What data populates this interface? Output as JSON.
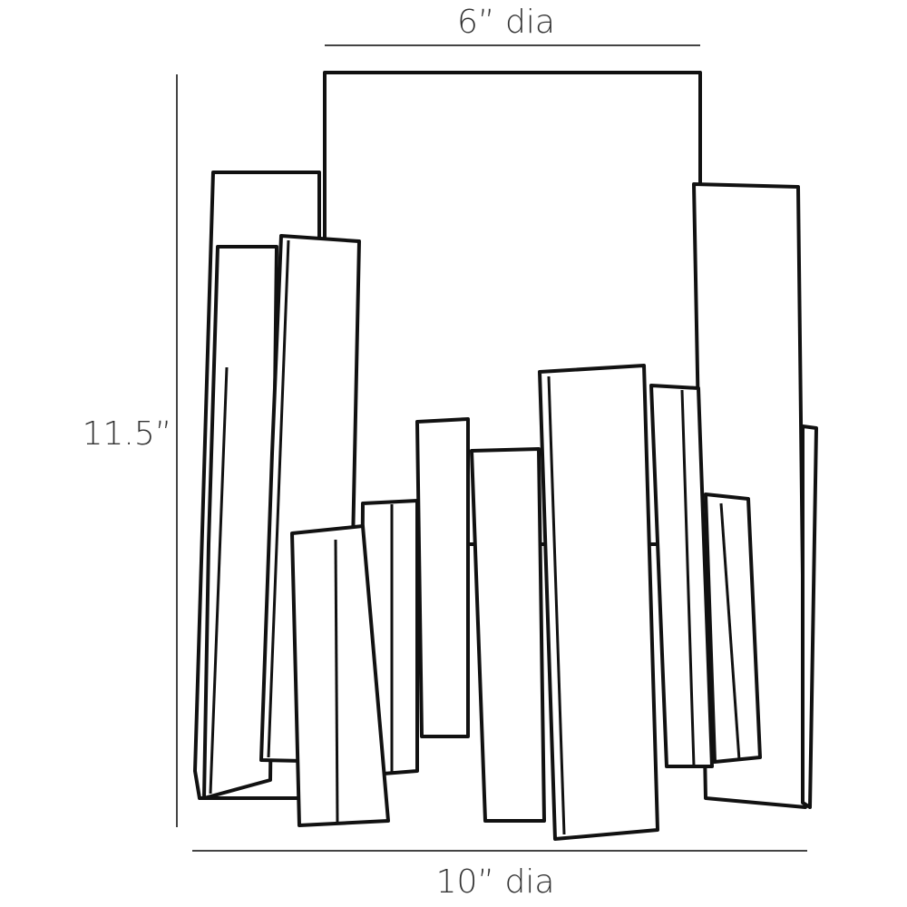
{
  "dimensions": {
    "top": "6” dia",
    "height": "11.5”",
    "bottom": "10” dia"
  }
}
